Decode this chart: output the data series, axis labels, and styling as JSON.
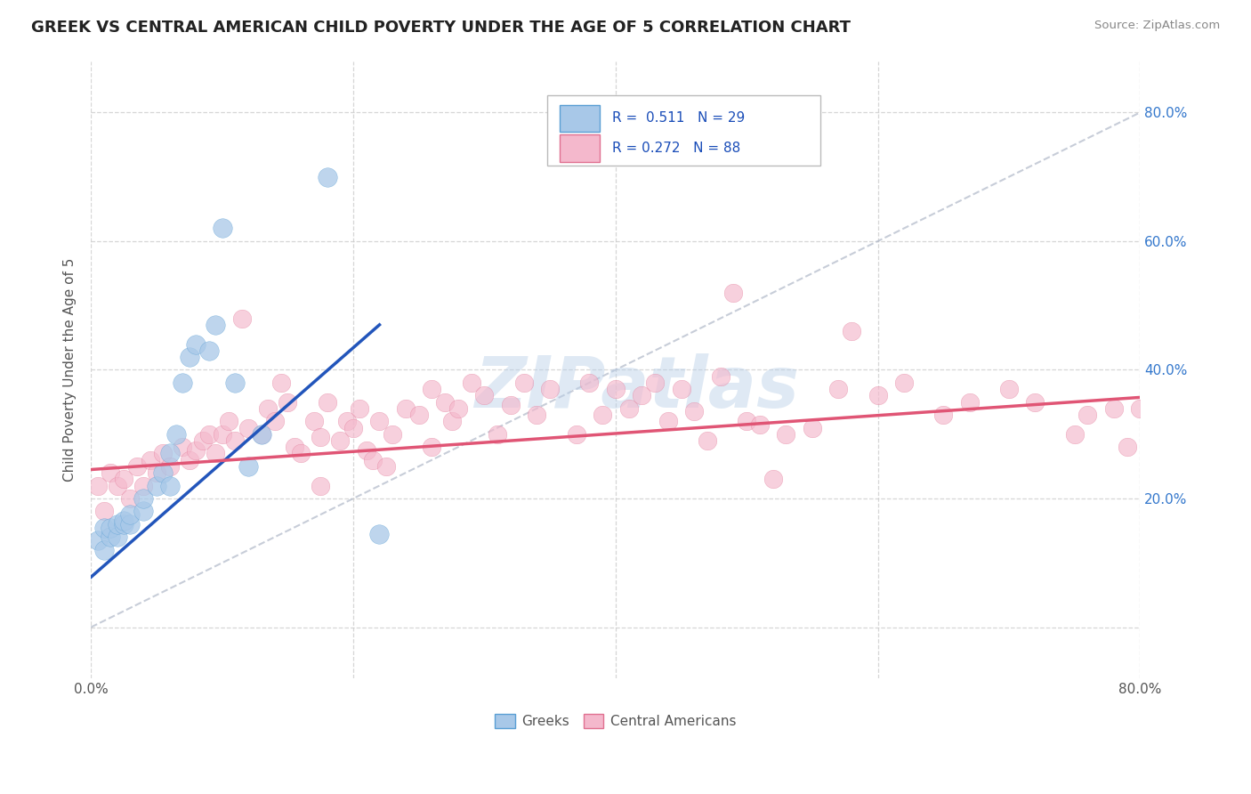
{
  "title": "GREEK VS CENTRAL AMERICAN CHILD POVERTY UNDER THE AGE OF 5 CORRELATION CHART",
  "source": "Source: ZipAtlas.com",
  "ylabel": "Child Poverty Under the Age of 5",
  "xlim": [
    0.0,
    0.8
  ],
  "ylim": [
    -0.08,
    0.88
  ],
  "ytick_positions": [
    0.0,
    0.2,
    0.4,
    0.6,
    0.8
  ],
  "ytick_labels": [
    "",
    "20.0%",
    "40.0%",
    "60.0%",
    "80.0%"
  ],
  "xtick_positions": [
    0.0,
    0.2,
    0.4,
    0.6,
    0.8
  ],
  "xtick_labels": [
    "0.0%",
    "",
    "",
    "",
    "80.0%"
  ],
  "greek_color": "#a8c8e8",
  "greek_edge_color": "#5a9fd4",
  "ca_color": "#f4b8cc",
  "ca_edge_color": "#e07090",
  "greek_line_color": "#2255bb",
  "ca_line_color": "#e05575",
  "ref_line_color": "#b0b8c8",
  "grid_color": "#cccccc",
  "legend_R1": "0.511",
  "legend_N1": "29",
  "legend_R2": "0.272",
  "legend_N2": "88",
  "watermark": "ZIPatlas",
  "title_fontsize": 13,
  "label_fontsize": 11,
  "tick_fontsize": 11,
  "greek_points_x": [
    0.005,
    0.01,
    0.01,
    0.015,
    0.015,
    0.02,
    0.02,
    0.025,
    0.025,
    0.03,
    0.03,
    0.04,
    0.04,
    0.05,
    0.055,
    0.06,
    0.06,
    0.065,
    0.07,
    0.075,
    0.08,
    0.09,
    0.095,
    0.1,
    0.11,
    0.12,
    0.13,
    0.18,
    0.22
  ],
  "greek_points_y": [
    0.135,
    0.12,
    0.155,
    0.14,
    0.155,
    0.14,
    0.16,
    0.16,
    0.165,
    0.16,
    0.175,
    0.18,
    0.2,
    0.22,
    0.24,
    0.22,
    0.27,
    0.3,
    0.38,
    0.42,
    0.44,
    0.43,
    0.47,
    0.62,
    0.38,
    0.25,
    0.3,
    0.7,
    0.145
  ],
  "ca_points_x": [
    0.005,
    0.01,
    0.015,
    0.02,
    0.025,
    0.03,
    0.035,
    0.04,
    0.045,
    0.05,
    0.055,
    0.06,
    0.07,
    0.075,
    0.08,
    0.085,
    0.09,
    0.095,
    0.1,
    0.105,
    0.11,
    0.12,
    0.13,
    0.135,
    0.14,
    0.145,
    0.15,
    0.155,
    0.16,
    0.17,
    0.175,
    0.18,
    0.19,
    0.195,
    0.2,
    0.205,
    0.21,
    0.22,
    0.23,
    0.24,
    0.25,
    0.26,
    0.27,
    0.275,
    0.28,
    0.29,
    0.3,
    0.31,
    0.32,
    0.33,
    0.34,
    0.35,
    0.37,
    0.38,
    0.39,
    0.4,
    0.41,
    0.42,
    0.43,
    0.44,
    0.45,
    0.46,
    0.47,
    0.48,
    0.49,
    0.5,
    0.51,
    0.52,
    0.53,
    0.55,
    0.57,
    0.58,
    0.6,
    0.62,
    0.65,
    0.67,
    0.7,
    0.72,
    0.75,
    0.76,
    0.78,
    0.79,
    0.8,
    0.215,
    0.225,
    0.175,
    0.26,
    0.115
  ],
  "ca_points_y": [
    0.22,
    0.18,
    0.24,
    0.22,
    0.23,
    0.2,
    0.25,
    0.22,
    0.26,
    0.24,
    0.27,
    0.25,
    0.28,
    0.26,
    0.275,
    0.29,
    0.3,
    0.27,
    0.3,
    0.32,
    0.29,
    0.31,
    0.3,
    0.34,
    0.32,
    0.38,
    0.35,
    0.28,
    0.27,
    0.32,
    0.295,
    0.35,
    0.29,
    0.32,
    0.31,
    0.34,
    0.275,
    0.32,
    0.3,
    0.34,
    0.33,
    0.37,
    0.35,
    0.32,
    0.34,
    0.38,
    0.36,
    0.3,
    0.345,
    0.38,
    0.33,
    0.37,
    0.3,
    0.38,
    0.33,
    0.37,
    0.34,
    0.36,
    0.38,
    0.32,
    0.37,
    0.335,
    0.29,
    0.39,
    0.52,
    0.32,
    0.315,
    0.23,
    0.3,
    0.31,
    0.37,
    0.46,
    0.36,
    0.38,
    0.33,
    0.35,
    0.37,
    0.35,
    0.3,
    0.33,
    0.34,
    0.28,
    0.34,
    0.26,
    0.25,
    0.22,
    0.28,
    0.48
  ]
}
